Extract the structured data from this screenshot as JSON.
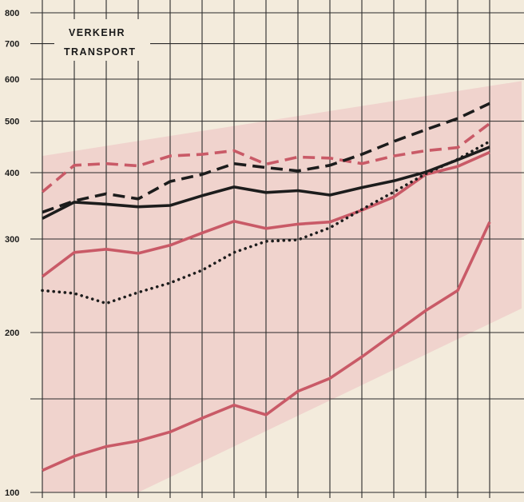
{
  "chart_data": {
    "type": "line",
    "title_lines": [
      "VERKEHR",
      "TRANSPORT"
    ],
    "y_scale": "log",
    "ylim": [
      100,
      800
    ],
    "y_ticks": [
      {
        "value": 100,
        "label": "100"
      },
      {
        "value": 150,
        "label": ""
      },
      {
        "value": 200,
        "label": "200"
      },
      {
        "value": 300,
        "label": "300"
      },
      {
        "value": 400,
        "label": "400"
      },
      {
        "value": 500,
        "label": "500"
      },
      {
        "value": 600,
        "label": "600"
      },
      {
        "value": 700,
        "label": "700"
      },
      {
        "value": 800,
        "label": "800"
      }
    ],
    "x_count": 15,
    "grid": true,
    "band": {
      "color": "#efcfca",
      "upper": [
        {
          "x": 0,
          "y": 430
        },
        {
          "x": 15,
          "y": 595
        }
      ],
      "lower": [
        {
          "x": 3,
          "y": 100
        },
        {
          "x": 15,
          "y": 222
        }
      ]
    },
    "series": [
      {
        "color": "#c95a67",
        "style": "dashed",
        "values": [
          368,
          413,
          416,
          412,
          430,
          433,
          440,
          415,
          428,
          426,
          416,
          430,
          440,
          446,
          495
        ]
      },
      {
        "color": "#1c1c1c",
        "style": "dashed",
        "values": [
          337,
          354,
          365,
          357,
          385,
          397,
          416,
          409,
          403,
          413,
          433,
          458,
          482,
          506,
          540
        ]
      },
      {
        "color": "#1c1c1c",
        "style": "solid",
        "values": [
          328,
          352,
          349,
          345,
          347,
          362,
          376,
          367,
          370,
          363,
          375,
          386,
          401,
          423,
          447
        ]
      },
      {
        "color": "#c95a67",
        "style": "solid",
        "values": [
          255,
          283,
          287,
          282,
          292,
          308,
          324,
          314,
          320,
          323,
          340,
          360,
          397,
          411,
          437
        ]
      },
      {
        "color": "#1c1c1c",
        "style": "dotted",
        "values": [
          240,
          237,
          227,
          238,
          248,
          262,
          283,
          297,
          299,
          315,
          341,
          368,
          398,
          424,
          458
        ]
      },
      {
        "color": "#c95a67",
        "style": "solid",
        "values": [
          110,
          117,
          122,
          125,
          130,
          138,
          146,
          140,
          155,
          164,
          180,
          199,
          220,
          240,
          323
        ]
      }
    ]
  }
}
